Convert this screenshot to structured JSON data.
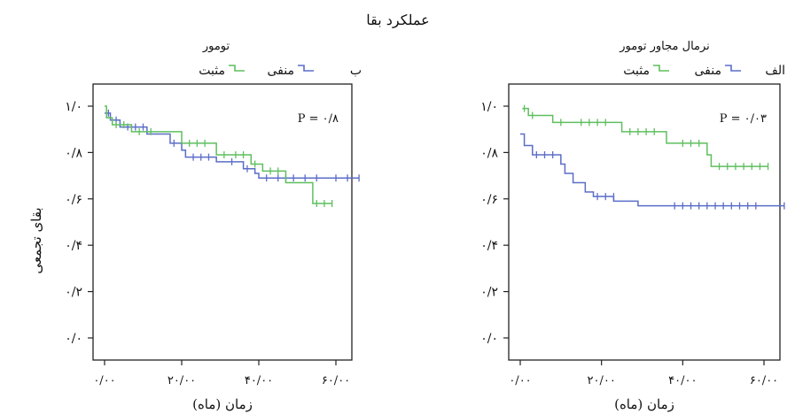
{
  "figure_title": "عملکرد بقا",
  "shared_ylabel": "بقای تجمعی",
  "colors": {
    "negative": "#5b6dc8",
    "positive": "#5fbf5f"
  },
  "chart_data": [
    {
      "type": "line",
      "panel_label": "ب",
      "legend_title": "تومور",
      "legend_labels": [
        "منفی",
        "مثبت"
      ],
      "legend_placement": "top",
      "p_value_text": "P = ۰/۸",
      "xlabel": "زمان (ماه)",
      "xlim": [
        -2,
        67
      ],
      "ylim": [
        -0.03,
        1.06
      ],
      "xticks": [
        0,
        20,
        40,
        60
      ],
      "xtick_labels": [
        "۰/۰۰",
        "۲۰/۰۰",
        "۴۰/۰۰",
        "۶۰/۰۰"
      ],
      "yticks": [
        0,
        0.2,
        0.4,
        0.6,
        0.8,
        1.0
      ],
      "ytick_labels": [
        "۰/۰",
        "۰/۲",
        "۰/۴",
        "۰/۶",
        "۰/۸",
        "۱/۰"
      ],
      "grid": false,
      "series": [
        {
          "name": "منفی",
          "color": "#5b6dc8",
          "steps": [
            [
              0,
              0.97
            ],
            [
              1.5,
              0.94
            ],
            [
              4,
              0.91
            ],
            [
              11,
              0.88
            ],
            [
              17,
              0.84
            ],
            [
              20,
              0.81
            ],
            [
              21,
              0.78
            ],
            [
              29,
              0.76
            ],
            [
              36,
              0.73
            ],
            [
              39,
              0.71
            ],
            [
              40,
              0.69
            ],
            [
              66,
              0.69
            ]
          ],
          "censored": [
            [
              1,
              0.97
            ],
            [
              3,
              0.94
            ],
            [
              6,
              0.91
            ],
            [
              8,
              0.91
            ],
            [
              10,
              0.91
            ],
            [
              18,
              0.84
            ],
            [
              23,
              0.78
            ],
            [
              25,
              0.78
            ],
            [
              27,
              0.78
            ],
            [
              33,
              0.76
            ],
            [
              37,
              0.73
            ],
            [
              42,
              0.69
            ],
            [
              45,
              0.69
            ],
            [
              47,
              0.69
            ],
            [
              49,
              0.69
            ],
            [
              52,
              0.69
            ],
            [
              55,
              0.69
            ],
            [
              60,
              0.69
            ],
            [
              63,
              0.69
            ],
            [
              66,
              0.69
            ]
          ]
        },
        {
          "name": "مثبت",
          "color": "#5fbf5f",
          "steps": [
            [
              0,
              1.0
            ],
            [
              0.5,
              0.95
            ],
            [
              2,
              0.92
            ],
            [
              7,
              0.89
            ],
            [
              20,
              0.84
            ],
            [
              29,
              0.79
            ],
            [
              38,
              0.75
            ],
            [
              41,
              0.72
            ],
            [
              47,
              0.67
            ],
            [
              54,
              0.58
            ],
            [
              59,
              0.58
            ]
          ],
          "censored": [
            [
              3,
              0.92
            ],
            [
              5,
              0.92
            ],
            [
              9,
              0.89
            ],
            [
              12,
              0.89
            ],
            [
              22,
              0.84
            ],
            [
              24,
              0.84
            ],
            [
              26,
              0.84
            ],
            [
              31,
              0.79
            ],
            [
              34,
              0.79
            ],
            [
              36,
              0.79
            ],
            [
              39,
              0.75
            ],
            [
              43,
              0.72
            ],
            [
              45,
              0.72
            ],
            [
              55,
              0.58
            ],
            [
              57,
              0.58
            ],
            [
              59,
              0.58
            ]
          ]
        }
      ]
    },
    {
      "type": "line",
      "panel_label": "الف",
      "legend_title": "نرمال مجاور تومور",
      "legend_labels": [
        "منفی",
        "مثبت"
      ],
      "legend_placement": "top",
      "p_value_text": "P = ۰/۰۳",
      "xlabel": "زمان (ماه)",
      "xlim": [
        -2,
        68
      ],
      "ylim": [
        -0.03,
        1.06
      ],
      "xticks": [
        0,
        20,
        40,
        60
      ],
      "xtick_labels": [
        "۰/۰۰",
        "۲۰/۰۰",
        "۴۰/۰۰",
        "۶۰/۰۰"
      ],
      "yticks": [
        0,
        0.2,
        0.4,
        0.6,
        0.8,
        1.0
      ],
      "ytick_labels": [
        "۰/۰",
        "۰/۲",
        "۰/۴",
        "۰/۶",
        "۰/۸",
        "۱/۰"
      ],
      "grid": false,
      "series": [
        {
          "name": "منفی",
          "color": "#5b6dc8",
          "steps": [
            [
              0,
              0.88
            ],
            [
              1,
              0.83
            ],
            [
              3,
              0.79
            ],
            [
              10,
              0.75
            ],
            [
              11,
              0.71
            ],
            [
              13,
              0.67
            ],
            [
              16,
              0.63
            ],
            [
              18,
              0.61
            ],
            [
              23,
              0.59
            ],
            [
              29,
              0.57
            ],
            [
              65,
              0.57
            ]
          ],
          "censored": [
            [
              4,
              0.79
            ],
            [
              6,
              0.79
            ],
            [
              8,
              0.79
            ],
            [
              19,
              0.61
            ],
            [
              21,
              0.61
            ],
            [
              23,
              0.61
            ],
            [
              38,
              0.57
            ],
            [
              40,
              0.57
            ],
            [
              42,
              0.57
            ],
            [
              44,
              0.57
            ],
            [
              46,
              0.57
            ],
            [
              48,
              0.57
            ],
            [
              50,
              0.57
            ],
            [
              52,
              0.57
            ],
            [
              54,
              0.57
            ],
            [
              56,
              0.57
            ],
            [
              58,
              0.57
            ],
            [
              65,
              0.57
            ]
          ]
        },
        {
          "name": "مثبت",
          "color": "#5fbf5f",
          "steps": [
            [
              0.5,
              0.99
            ],
            [
              2,
              0.96
            ],
            [
              8,
              0.93
            ],
            [
              25,
              0.89
            ],
            [
              36,
              0.84
            ],
            [
              46,
              0.79
            ],
            [
              47,
              0.74
            ],
            [
              61,
              0.74
            ]
          ],
          "censored": [
            [
              1,
              0.99
            ],
            [
              3,
              0.96
            ],
            [
              10,
              0.93
            ],
            [
              15,
              0.93
            ],
            [
              17,
              0.93
            ],
            [
              19,
              0.93
            ],
            [
              21,
              0.93
            ],
            [
              27,
              0.89
            ],
            [
              29,
              0.89
            ],
            [
              31,
              0.89
            ],
            [
              33,
              0.89
            ],
            [
              40,
              0.84
            ],
            [
              42,
              0.84
            ],
            [
              44,
              0.84
            ],
            [
              49,
              0.74
            ],
            [
              51,
              0.74
            ],
            [
              53,
              0.74
            ],
            [
              55,
              0.74
            ],
            [
              57,
              0.74
            ],
            [
              59,
              0.74
            ],
            [
              61,
              0.74
            ]
          ]
        }
      ]
    }
  ]
}
